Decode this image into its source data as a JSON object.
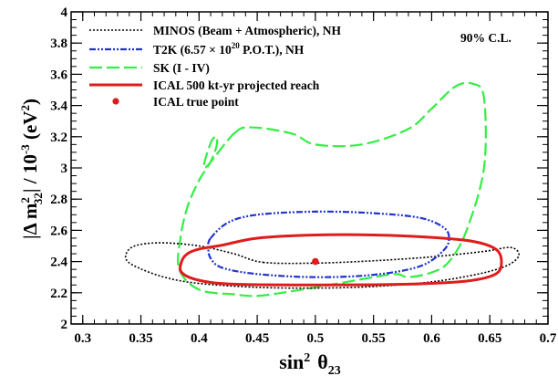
{
  "chart_data": {
    "type": "line",
    "title": "",
    "xlabel_main": "sin",
    "xlabel_sup": "2",
    "xlabel_theta": "θ",
    "xlabel_sub": "23",
    "ylabel_prefix": "|Δ m",
    "ylabel_sup1": "2",
    "ylabel_sub1": "32",
    "ylabel_mid": "| / 10",
    "ylabel_sup2": "-3",
    "ylabel_unit_open": " (eV",
    "ylabel_sup3": "2",
    "ylabel_unit_close": ")",
    "xlim": [
      0.29,
      0.7
    ],
    "ylim": [
      2.0,
      4.0
    ],
    "x_ticks": [
      0.3,
      0.35,
      0.4,
      0.45,
      0.5,
      0.55,
      0.6,
      0.65,
      0.7
    ],
    "x_tick_labels": [
      "0.3",
      "0.35",
      "0.4",
      "0.45",
      "0.5",
      "0.55",
      "0.6",
      "0.65",
      "0.7"
    ],
    "y_ticks": [
      2.0,
      2.2,
      2.4,
      2.6,
      2.8,
      3.0,
      3.2,
      3.4,
      3.6,
      3.8,
      4.0
    ],
    "y_tick_labels": [
      "2",
      "2.2",
      "2.4",
      "2.6",
      "2.8",
      "3",
      "3.2",
      "3.4",
      "3.6",
      "3.8",
      "4"
    ],
    "grid": false,
    "legend_position": "top-left",
    "annotation": "90% C.L.",
    "series": [
      {
        "name": "MINOS (Beam + Atmospheric), NH",
        "color": "#000000",
        "style": "dotted",
        "closed": true,
        "x": [
          0.455,
          0.5,
          0.55,
          0.6,
          0.645,
          0.668,
          0.675,
          0.665,
          0.64,
          0.6,
          0.55,
          0.5,
          0.45,
          0.4,
          0.37,
          0.345,
          0.337,
          0.34,
          0.35,
          0.37,
          0.4,
          0.43
        ],
        "y": [
          2.395,
          2.39,
          2.405,
          2.43,
          2.465,
          2.49,
          2.44,
          2.375,
          2.32,
          2.27,
          2.24,
          2.23,
          2.235,
          2.26,
          2.3,
          2.37,
          2.42,
          2.48,
          2.51,
          2.52,
          2.5,
          2.45
        ]
      },
      {
        "name": "T2K (6.57 × 10²⁰ P.O.T.), NH",
        "color": "#2233cc",
        "style": "dash-dot-dot",
        "closed": true,
        "x": [
          0.41,
          0.425,
          0.45,
          0.5,
          0.55,
          0.59,
          0.61,
          0.615,
          0.61,
          0.59,
          0.55,
          0.5,
          0.45,
          0.42,
          0.41,
          0.408
        ],
        "y": [
          2.55,
          2.65,
          2.7,
          2.72,
          2.71,
          2.68,
          2.62,
          2.55,
          2.47,
          2.37,
          2.315,
          2.3,
          2.32,
          2.36,
          2.42,
          2.49
        ]
      },
      {
        "name": "SK (I - IV)",
        "color": "#33ee44",
        "style": "dashed",
        "closed": true,
        "x": [
          0.43,
          0.445,
          0.48,
          0.5,
          0.54,
          0.58,
          0.6,
          0.62,
          0.635,
          0.645,
          0.645,
          0.63,
          0.615,
          0.6,
          0.58,
          0.57,
          0.55,
          0.52,
          0.48,
          0.45,
          0.43,
          0.4,
          0.383,
          0.384,
          0.39,
          0.4,
          0.41,
          0.415,
          0.415,
          0.41,
          0.405
        ],
        "y": [
          3.22,
          3.26,
          3.22,
          3.15,
          3.15,
          3.25,
          3.38,
          3.52,
          3.54,
          3.45,
          3.0,
          2.6,
          2.4,
          2.33,
          2.3,
          2.32,
          2.3,
          2.26,
          2.21,
          2.18,
          2.19,
          2.22,
          2.35,
          2.55,
          2.75,
          2.92,
          3.04,
          3.14,
          3.2,
          3.16,
          3.0
        ]
      },
      {
        "name": "ICAL 500 kt-yr projected reach",
        "color": "#e01b1b",
        "style": "solid",
        "closed": true,
        "x": [
          0.42,
          0.45,
          0.5,
          0.55,
          0.6,
          0.635,
          0.655,
          0.66,
          0.655,
          0.63,
          0.58,
          0.5,
          0.43,
          0.4,
          0.385,
          0.385,
          0.39,
          0.4
        ],
        "y": [
          2.505,
          2.55,
          2.57,
          2.57,
          2.555,
          2.53,
          2.48,
          2.4,
          2.32,
          2.275,
          2.255,
          2.25,
          2.255,
          2.28,
          2.33,
          2.4,
          2.45,
          2.48
        ]
      }
    ],
    "true_point": {
      "name": "ICAL true point",
      "x": 0.5,
      "y": 2.4,
      "color": "#e01b1b"
    }
  }
}
